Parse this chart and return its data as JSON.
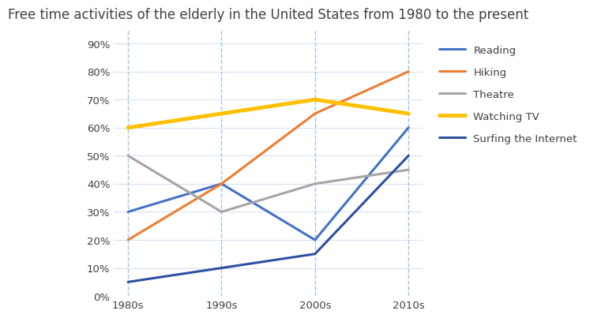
{
  "title": "Free time activities of the elderly in the United States from 1980 to the present",
  "x_labels": [
    "1980s",
    "1990s",
    "2000s",
    "2010s"
  ],
  "x_values": [
    0,
    1,
    2,
    3
  ],
  "series": [
    {
      "name": "Reading",
      "values": [
        30,
        40,
        20,
        60
      ],
      "color": "#4472C4",
      "linewidth": 2.2
    },
    {
      "name": "Hiking",
      "values": [
        20,
        40,
        65,
        80
      ],
      "color": "#ED7D31",
      "linewidth": 2.2
    },
    {
      "name": "Theatre",
      "values": [
        50,
        30,
        40,
        45
      ],
      "color": "#A5A5A5",
      "linewidth": 2.2
    },
    {
      "name": "Watching TV",
      "values": [
        60,
        65,
        70,
        65
      ],
      "color": "#FFC000",
      "linewidth": 3.5
    },
    {
      "name": "Surfing the Internet",
      "values": [
        5,
        10,
        15,
        50
      ],
      "color": "#2E4FA3",
      "linewidth": 2.2
    }
  ],
  "ylim": [
    0,
    95
  ],
  "yticks": [
    0,
    10,
    20,
    30,
    40,
    50,
    60,
    70,
    80,
    90
  ],
  "grid_color": "#D9E1F2",
  "vline_color": "#9DC3E6",
  "background_color": "#ffffff",
  "title_fontsize": 12,
  "tick_fontsize": 9.5,
  "legend_fontsize": 9.5,
  "axis_label_color": "#404040",
  "legend_label_color": "#404040"
}
